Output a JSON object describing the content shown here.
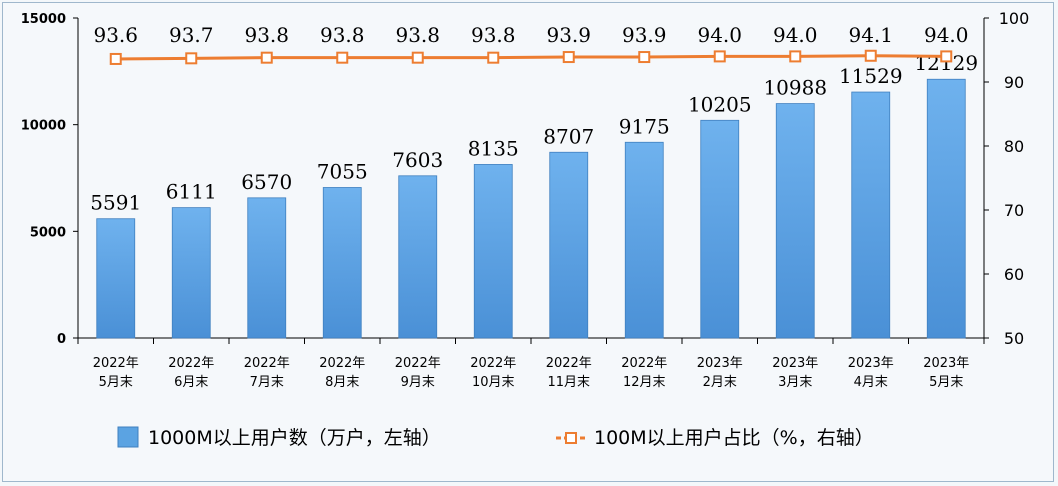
{
  "chart_data": {
    "type": "bar",
    "title": "",
    "categories": [
      [
        "2022年",
        "5月末"
      ],
      [
        "2022年",
        "6月末"
      ],
      [
        "2022年",
        "7月末"
      ],
      [
        "2022年",
        "8月末"
      ],
      [
        "2022年",
        "9月末"
      ],
      [
        "2022年",
        "10月末"
      ],
      [
        "2022年",
        "11月末"
      ],
      [
        "2022年",
        "12月末"
      ],
      [
        "2023年",
        "2月末"
      ],
      [
        "2023年",
        "3月末"
      ],
      [
        "2023年",
        "4月末"
      ],
      [
        "2023年",
        "5月末"
      ]
    ],
    "series": [
      {
        "name": "1000M以上用户数（万户，左轴）",
        "type": "bar",
        "axis": "left",
        "color": "#5ba3e2",
        "values": [
          5591,
          6111,
          6570,
          7055,
          7603,
          8135,
          8707,
          9175,
          10205,
          10988,
          11529,
          12129
        ],
        "labels": [
          "5591",
          "6111",
          "6570",
          "7055",
          "7603",
          "8135",
          "8707",
          "9175",
          "10205",
          "10988",
          "11529",
          "12129"
        ]
      },
      {
        "name": "100M以上用户占比（%，右轴）",
        "type": "line",
        "axis": "right",
        "color": "#ed7d31",
        "values": [
          93.6,
          93.7,
          93.8,
          93.8,
          93.8,
          93.8,
          93.9,
          93.9,
          94.0,
          94.0,
          94.1,
          94.0
        ],
        "labels": [
          "93.6",
          "93.7",
          "93.8",
          "93.8",
          "93.8",
          "93.8",
          "93.9",
          "93.9",
          "94.0",
          "94.0",
          "94.1",
          "94.0"
        ]
      }
    ],
    "y_left": {
      "min": 0,
      "max": 15000,
      "ticks": [
        "0",
        "5000",
        "10000",
        "15000"
      ]
    },
    "y_right": {
      "min": 50,
      "max": 100,
      "ticks": [
        "50",
        "60",
        "70",
        "80",
        "90",
        "100"
      ]
    },
    "grid": false,
    "legend": "bottom"
  }
}
